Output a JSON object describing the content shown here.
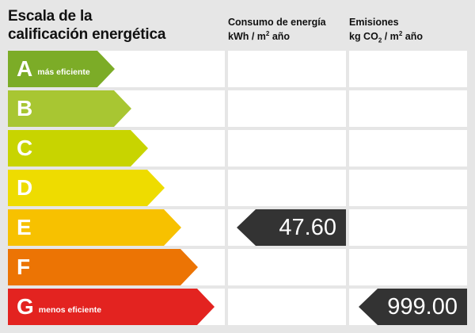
{
  "header": {
    "title_line1": "Escala de la",
    "title_line2": "calificación energética"
  },
  "columns": {
    "energy": {
      "line1": "Consumo de energía",
      "unit_prefix": "kWh / m",
      "unit_sup": "2",
      "unit_suffix": " año"
    },
    "emissions": {
      "line1": "Emisiones",
      "unit_prefix": "kg CO",
      "unit_sub": "2",
      "unit_suffix": " / m",
      "unit_sup": "2",
      "unit_suffix2": " año"
    }
  },
  "chart_data": {
    "type": "bar",
    "title": "Escala de la calificación energética",
    "categories": [
      "A",
      "B",
      "C",
      "D",
      "E",
      "F",
      "G"
    ],
    "notes": [
      "más eficiente",
      "",
      "",
      "",
      "",
      "",
      "menos eficiente"
    ],
    "colors": [
      "#7cac27",
      "#a8c632",
      "#c8d400",
      "#eedc00",
      "#f7c100",
      "#ec7404",
      "#e32320"
    ],
    "series": [
      {
        "name": "Consumo de energía (kWh/m² año)",
        "rating": "E",
        "value": "47.60"
      },
      {
        "name": "Emisiones (kg CO₂/m² año)",
        "rating": "G",
        "value": "999.00"
      }
    ]
  }
}
